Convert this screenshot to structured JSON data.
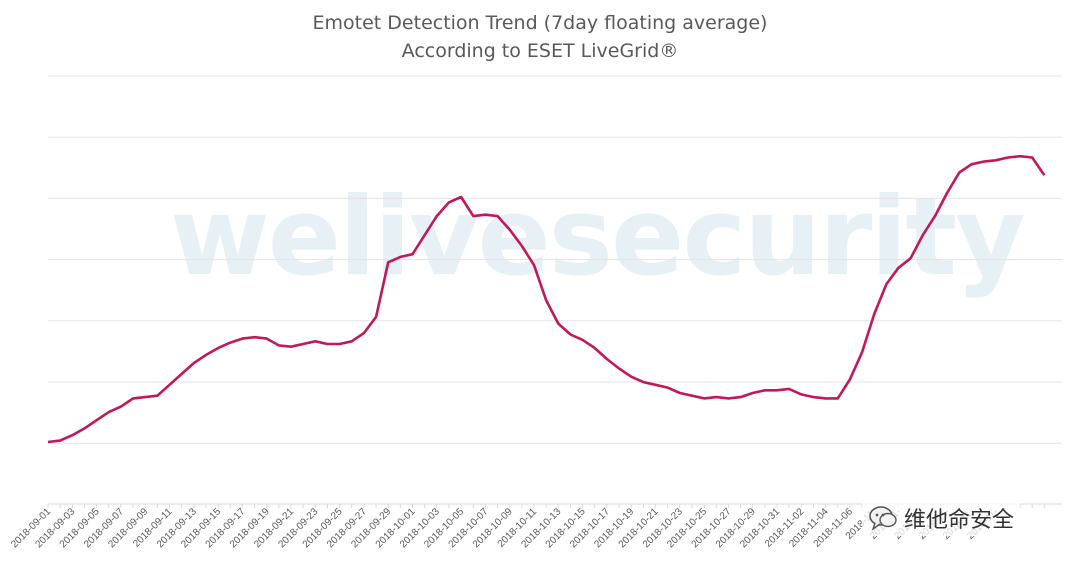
{
  "watermark": {
    "text": "welivesecurity",
    "color": "#dcebf2"
  },
  "footer_watermark": {
    "text": "维他命安全",
    "icon": "chat-bubble-icon"
  },
  "chart_data": {
    "type": "line",
    "title": "Emotet Detection Trend (7day floating average)",
    "subtitle": "According to ESET LiveGrid®",
    "xlabel": "",
    "ylabel": "",
    "grid": true,
    "legend": "none",
    "line_color": "#c2185b",
    "y_gridlines": 7,
    "x_tick_labels": [
      "2018-09-01",
      "2018-09-03",
      "2018-09-05",
      "2018-09-07",
      "2018-09-09",
      "2018-09-11",
      "2018-09-13",
      "2018-09-15",
      "2018-09-17",
      "2018-09-19",
      "2018-09-21",
      "2018-09-23",
      "2018-09-25",
      "2018-09-27",
      "2018-09-29",
      "2018-10-01",
      "2018-10-03",
      "2018-10-05",
      "2018-10-07",
      "2018-10-09",
      "2018-10-11",
      "2018-10-13",
      "2018-10-15",
      "2018-10-17",
      "2018-10-19",
      "2018-10-21",
      "2018-10-23",
      "2018-10-25",
      "2018-10-27",
      "2018-10-29",
      "2018-10-31",
      "2018-11-02",
      "2018-11-04",
      "2018-11-06",
      "2018-11-",
      "2018-11-",
      "2018-11-",
      "2018-11-",
      "2018-11-",
      "2018-11-"
    ],
    "x": [
      "2018-09-01",
      "2018-09-02",
      "2018-09-03",
      "2018-09-04",
      "2018-09-05",
      "2018-09-06",
      "2018-09-07",
      "2018-09-08",
      "2018-09-09",
      "2018-09-10",
      "2018-09-11",
      "2018-09-12",
      "2018-09-13",
      "2018-09-14",
      "2018-09-15",
      "2018-09-16",
      "2018-09-17",
      "2018-09-18",
      "2018-09-19",
      "2018-09-20",
      "2018-09-21",
      "2018-09-22",
      "2018-09-23",
      "2018-09-24",
      "2018-09-25",
      "2018-09-26",
      "2018-09-27",
      "2018-09-28",
      "2018-09-29",
      "2018-09-30",
      "2018-10-01",
      "2018-10-02",
      "2018-10-03",
      "2018-10-04",
      "2018-10-05",
      "2018-10-06",
      "2018-10-07",
      "2018-10-08",
      "2018-10-09",
      "2018-10-10",
      "2018-10-11",
      "2018-10-12",
      "2018-10-13",
      "2018-10-14",
      "2018-10-15",
      "2018-10-16",
      "2018-10-17",
      "2018-10-18",
      "2018-10-19",
      "2018-10-20",
      "2018-10-21",
      "2018-10-22",
      "2018-10-23",
      "2018-10-24",
      "2018-10-25",
      "2018-10-26",
      "2018-10-27",
      "2018-10-28",
      "2018-10-29",
      "2018-10-30",
      "2018-10-31",
      "2018-11-01",
      "2018-11-02",
      "2018-11-03",
      "2018-11-04",
      "2018-11-05",
      "2018-11-06",
      "2018-11-07",
      "2018-11-08",
      "2018-11-09",
      "2018-11-10",
      "2018-11-11",
      "2018-11-12",
      "2018-11-13",
      "2018-11-14",
      "2018-11-15",
      "2018-11-16",
      "2018-11-17",
      "2018-11-18",
      "2018-11-19",
      "2018-11-20",
      "2018-11-21",
      "2018-11-22"
    ],
    "values": [
      1.0,
      1.05,
      1.25,
      1.5,
      1.8,
      2.1,
      2.3,
      2.6,
      2.65,
      2.7,
      3.1,
      3.5,
      3.9,
      4.2,
      4.45,
      4.65,
      4.8,
      4.85,
      4.8,
      4.55,
      4.5,
      4.6,
      4.7,
      4.6,
      4.6,
      4.7,
      5.0,
      5.6,
      7.6,
      7.8,
      7.9,
      8.6,
      9.3,
      9.8,
      10.0,
      9.3,
      9.35,
      9.3,
      8.8,
      8.2,
      7.5,
      6.2,
      5.35,
      4.95,
      4.75,
      4.45,
      4.05,
      3.7,
      3.4,
      3.2,
      3.1,
      3.0,
      2.8,
      2.7,
      2.6,
      2.65,
      2.6,
      2.65,
      2.8,
      2.9,
      2.9,
      2.95,
      2.75,
      2.65,
      2.6,
      2.6,
      3.3,
      4.3,
      5.7,
      6.8,
      7.4,
      7.75,
      8.6,
      9.3,
      10.15,
      10.9,
      11.2,
      11.3,
      11.35,
      11.45,
      11.5,
      11.45,
      10.8
    ]
  }
}
